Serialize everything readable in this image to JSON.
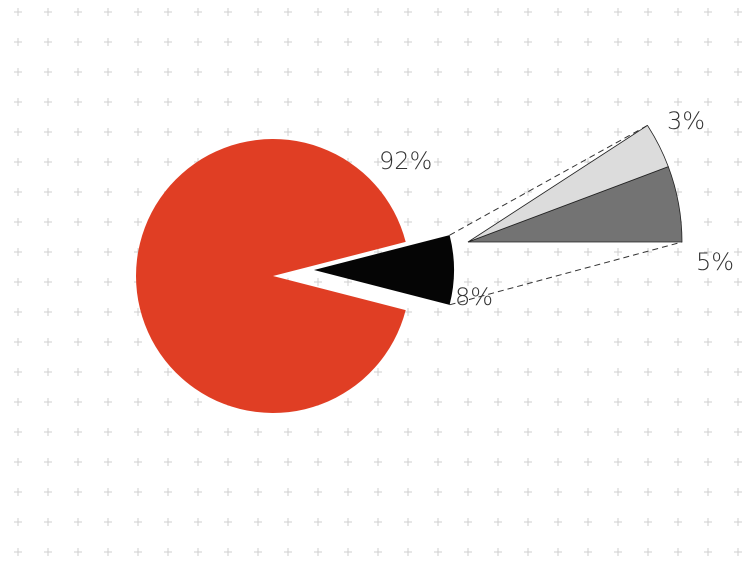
{
  "chart_data": [
    {
      "type": "pie",
      "slices": [
        {
          "label": "92%",
          "value": 92,
          "color": "#e03e24"
        },
        {
          "label": "8%",
          "value": 8,
          "color": "#050505"
        }
      ]
    },
    {
      "type": "bar",
      "stacked": true,
      "slices": [
        {
          "label": "5%",
          "value": 5,
          "color": "#737373"
        },
        {
          "label": "3%",
          "value": 3,
          "color": "#dcdcdc"
        }
      ]
    }
  ],
  "colors": {
    "background": "#ffffff",
    "grid": "#cfcfcf",
    "connector": "#333333",
    "label": "#333333"
  }
}
